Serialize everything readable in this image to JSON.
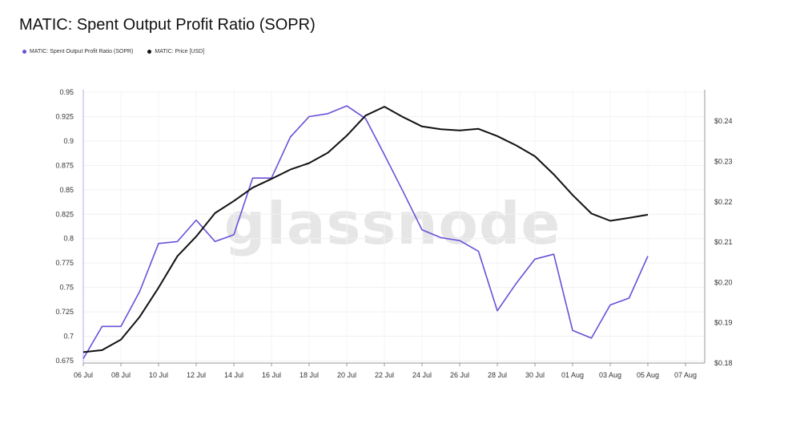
{
  "chart_data": {
    "type": "line",
    "title": "MATIC: Spent Output Profit Ratio (SOPR)",
    "watermark": "glassnode",
    "x_ticks": [
      "06 Jul",
      "08 Jul",
      "10 Jul",
      "12 Jul",
      "14 Jul",
      "16 Jul",
      "18 Jul",
      "20 Jul",
      "22 Jul",
      "24 Jul",
      "26 Jul",
      "28 Jul",
      "30 Jul",
      "01 Aug",
      "03 Aug",
      "05 Aug",
      "07 Aug"
    ],
    "y_left": {
      "ticks": [
        "0.95",
        "0.925",
        "0.9",
        "0.875",
        "0.85",
        "0.825",
        "0.8",
        "0.775",
        "0.75",
        "0.725",
        "0.7",
        "0.675"
      ],
      "lim": [
        0.6725,
        0.9525
      ]
    },
    "y_right": {
      "ticks": [
        "$0.24",
        "$0.23",
        "$0.22",
        "$0.21",
        "$0.20",
        "$0.19",
        "$0.18"
      ],
      "lim": [
        0.18,
        0.2478
      ]
    },
    "x": [
      "06 Jul",
      "07 Jul",
      "08 Jul",
      "09 Jul",
      "10 Jul",
      "11 Jul",
      "12 Jul",
      "13 Jul",
      "14 Jul",
      "15 Jul",
      "16 Jul",
      "17 Jul",
      "18 Jul",
      "19 Jul",
      "20 Jul",
      "21 Jul",
      "22 Jul",
      "23 Jul",
      "24 Jul",
      "25 Jul",
      "26 Jul",
      "27 Jul",
      "28 Jul",
      "29 Jul",
      "30 Jul",
      "31 Jul",
      "01 Aug",
      "02 Aug",
      "03 Aug",
      "04 Aug",
      "05 Aug"
    ],
    "series": [
      {
        "name": "MATIC: Spent Output Profit Ratio (SOPR)",
        "axis": "left",
        "color": "#6b4fd8",
        "values": [
          0.677,
          0.71,
          0.71,
          0.746,
          0.795,
          0.797,
          0.819,
          0.797,
          0.804,
          0.862,
          0.862,
          0.904,
          0.925,
          0.928,
          0.936,
          0.923,
          0.886,
          0.848,
          0.809,
          0.801,
          0.798,
          0.787,
          0.726,
          0.754,
          0.779,
          0.784,
          0.706,
          0.698,
          0.732,
          0.739,
          0.782
        ]
      },
      {
        "name": "MATIC: Price [USD]",
        "axis": "right",
        "color": "#111111",
        "values": [
          0.1827,
          0.1832,
          0.1858,
          0.1915,
          0.1987,
          0.2065,
          0.2114,
          0.2172,
          0.2202,
          0.2235,
          0.2257,
          0.228,
          0.2296,
          0.2322,
          0.2364,
          0.2414,
          0.2436,
          0.241,
          0.2387,
          0.238,
          0.2377,
          0.2381,
          0.2363,
          0.234,
          0.2313,
          0.2268,
          0.2217,
          0.2171,
          0.2153,
          0.216,
          0.2168
        ]
      }
    ]
  }
}
